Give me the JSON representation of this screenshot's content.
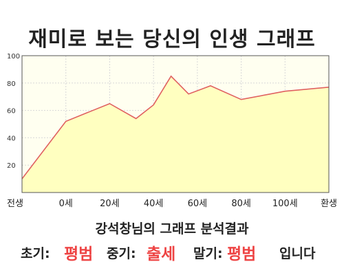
{
  "title": "재미로 보는 당신의 인생 그래프",
  "chart_data": {
    "type": "area",
    "title": "재미로 보는 당신의 인생 그래프",
    "xlabel": "",
    "ylabel": "",
    "categories": [
      "전생",
      "0세",
      "20세",
      "40세",
      "60세",
      "80세",
      "100세",
      "환생"
    ],
    "y_ticks": [
      20,
      40,
      60,
      80,
      100
    ],
    "ylim": [
      0,
      100
    ],
    "grid": true,
    "series": [
      {
        "x": [
          0,
          1,
          2,
          2.6,
          3,
          3.4,
          3.8,
          4.3,
          5,
          6,
          7
        ],
        "values": [
          10,
          52,
          65,
          54,
          64,
          85,
          72,
          78,
          68,
          74,
          77
        ]
      }
    ],
    "colors": {
      "line": "#e06060",
      "fill": "#ffffc0",
      "plot_background": "#fffff0",
      "grid": "#d8d8d8"
    }
  },
  "subtitle": "강석창님의 그래프 분석결과",
  "result": {
    "early_label": "초기:",
    "early_value": "평범",
    "mid_label": "중기:",
    "mid_value": "출세",
    "late_label": "말기:",
    "late_value": "평범",
    "suffix": "입니다"
  }
}
